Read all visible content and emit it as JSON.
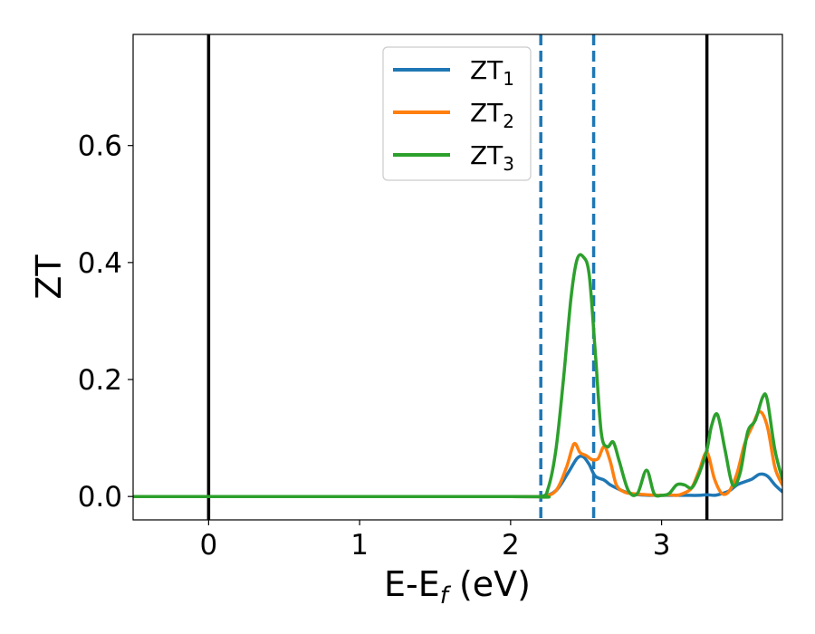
{
  "chart_data": {
    "type": "line",
    "title": "",
    "xlabel": {
      "main": "E-E",
      "sub": "f",
      "unit": " (eV)"
    },
    "ylabel": "ZT",
    "xlim": [
      -0.5,
      3.8
    ],
    "ylim": [
      -0.04,
      0.79
    ],
    "xticks": [
      0,
      1,
      2,
      3
    ],
    "yticks": [
      0.0,
      0.2,
      0.4,
      0.6
    ],
    "xtick_labels": [
      "0",
      "1",
      "2",
      "3"
    ],
    "ytick_labels": [
      "0.0",
      "0.2",
      "0.4",
      "0.6"
    ],
    "grid": false,
    "legend_position": "top-center",
    "vertical_lines": [
      {
        "x": 0.0,
        "style": "solid",
        "color": "#000000"
      },
      {
        "x": 2.2,
        "style": "dashed",
        "color": "#1f77b4"
      },
      {
        "x": 2.55,
        "style": "dashed",
        "color": "#1f77b4"
      },
      {
        "x": 3.3,
        "style": "solid",
        "color": "#000000"
      }
    ],
    "series": [
      {
        "name": "ZT",
        "name_sub": "1",
        "color": "#1f77b4",
        "x": [
          -0.5,
          2.0,
          2.2,
          2.3,
          2.38,
          2.44,
          2.48,
          2.52,
          2.56,
          2.62,
          2.66,
          2.72,
          2.78,
          2.85,
          2.95,
          3.05,
          3.15,
          3.25,
          3.3,
          3.35,
          3.4,
          3.45,
          3.5,
          3.55,
          3.6,
          3.65,
          3.7,
          3.75,
          3.8
        ],
        "y": [
          0.0,
          0.0,
          0.0,
          0.01,
          0.04,
          0.065,
          0.068,
          0.055,
          0.035,
          0.028,
          0.02,
          0.012,
          0.006,
          0.003,
          0.002,
          0.002,
          0.002,
          0.002,
          0.003,
          0.002,
          0.005,
          0.01,
          0.02,
          0.025,
          0.03,
          0.038,
          0.035,
          0.02,
          0.008
        ]
      },
      {
        "name": "ZT",
        "name_sub": "2",
        "color": "#ff7f0e",
        "x": [
          -0.5,
          2.0,
          2.2,
          2.3,
          2.37,
          2.42,
          2.46,
          2.5,
          2.54,
          2.58,
          2.62,
          2.66,
          2.7,
          2.75,
          2.8,
          2.9,
          3.0,
          3.05,
          3.1,
          3.15,
          3.2,
          3.25,
          3.3,
          3.35,
          3.4,
          3.45,
          3.5,
          3.55,
          3.6,
          3.65,
          3.7,
          3.75,
          3.8
        ],
        "y": [
          0.0,
          0.0,
          0.0,
          0.01,
          0.05,
          0.09,
          0.075,
          0.07,
          0.063,
          0.065,
          0.085,
          0.06,
          0.02,
          0.008,
          0.005,
          0.003,
          0.002,
          0.003,
          0.002,
          0.006,
          0.015,
          0.045,
          0.075,
          0.03,
          0.005,
          0.01,
          0.04,
          0.09,
          0.12,
          0.145,
          0.12,
          0.05,
          0.02
        ]
      },
      {
        "name": "ZT",
        "name_sub": "3",
        "color": "#2ca02c",
        "x": [
          -0.5,
          2.0,
          2.2,
          2.25,
          2.3,
          2.35,
          2.4,
          2.44,
          2.48,
          2.52,
          2.56,
          2.6,
          2.64,
          2.68,
          2.72,
          2.78,
          2.84,
          2.9,
          2.95,
          3.0,
          3.05,
          3.1,
          3.15,
          3.2,
          3.25,
          3.3,
          3.33,
          3.37,
          3.42,
          3.47,
          3.52,
          3.57,
          3.62,
          3.67,
          3.7,
          3.75,
          3.8
        ],
        "y": [
          0.0,
          0.0,
          0.0,
          0.015,
          0.08,
          0.2,
          0.34,
          0.405,
          0.41,
          0.38,
          0.25,
          0.11,
          0.085,
          0.093,
          0.06,
          0.01,
          0.005,
          0.045,
          0.005,
          0.002,
          0.005,
          0.02,
          0.02,
          0.015,
          0.04,
          0.08,
          0.12,
          0.14,
          0.08,
          0.02,
          0.04,
          0.11,
          0.13,
          0.17,
          0.165,
          0.08,
          0.03
        ]
      }
    ]
  }
}
